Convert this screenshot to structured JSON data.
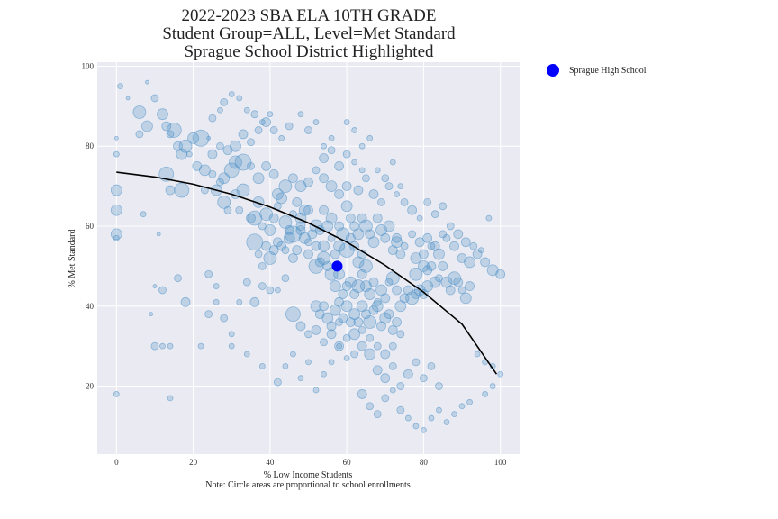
{
  "chart_data": {
    "type": "scatter",
    "title_lines": [
      "2022-2023 SBA ELA 10TH GRADE",
      "Student Group=ALL, Level=Met Standard",
      "Sprague School District Highlighted"
    ],
    "xlabel": "% Low Income Students",
    "ylabel": "% Met Standard",
    "note": "Note: Circle areas are proportional to school enrollments",
    "xlim": [
      -5,
      105
    ],
    "ylim": [
      3,
      101
    ],
    "xticks": [
      0,
      20,
      40,
      60,
      80,
      100
    ],
    "yticks": [
      20,
      40,
      60,
      80,
      100
    ],
    "grid": true,
    "legend_placement": "outside-top-right",
    "colors": {
      "points": "#4a8fc7",
      "highlight": "#0000ff",
      "fit": "#000000",
      "plot_bg": "#eaeaf2",
      "grid": "#ffffff"
    },
    "fit_line": {
      "x": [
        0,
        10,
        20,
        30,
        40,
        50,
        60,
        70,
        80,
        90,
        99
      ],
      "y": [
        73.5,
        72.3,
        70.5,
        68,
        64.8,
        60.8,
        56,
        50.2,
        43.5,
        35.5,
        23
      ]
    },
    "highlight": {
      "name": "Sprague High School",
      "x": 57.5,
      "y": 50
    },
    "points": [
      [
        1,
        95,
        3
      ],
      [
        3,
        92,
        2
      ],
      [
        6,
        88.5,
        7
      ],
      [
        8,
        96,
        2
      ],
      [
        10,
        92,
        4
      ],
      [
        12,
        88,
        6
      ],
      [
        13,
        85,
        5
      ],
      [
        14,
        83,
        4
      ],
      [
        15,
        84,
        8
      ],
      [
        6,
        83,
        4
      ],
      [
        8,
        85,
        6
      ],
      [
        16,
        80,
        5
      ],
      [
        18,
        80,
        7
      ],
      [
        20,
        82,
        6
      ],
      [
        22,
        82,
        9
      ],
      [
        24,
        82,
        2
      ],
      [
        17,
        78,
        6
      ],
      [
        19,
        78,
        3
      ],
      [
        21,
        75,
        5
      ],
      [
        23,
        74,
        6
      ],
      [
        25,
        73,
        4
      ],
      [
        27,
        71,
        4
      ],
      [
        28,
        72,
        6
      ],
      [
        30,
        74,
        8
      ],
      [
        31,
        76,
        7
      ],
      [
        33,
        76,
        9
      ],
      [
        35,
        75,
        4
      ],
      [
        37,
        72,
        6
      ],
      [
        39,
        75,
        5
      ],
      [
        41,
        73,
        5
      ],
      [
        13,
        73,
        8
      ],
      [
        14,
        69,
        5
      ],
      [
        17,
        69,
        8
      ],
      [
        23,
        69,
        4
      ],
      [
        26,
        69,
        6
      ],
      [
        28,
        66,
        7
      ],
      [
        29,
        64,
        4
      ],
      [
        31,
        68,
        5
      ],
      [
        32,
        64,
        4
      ],
      [
        33,
        69,
        7
      ],
      [
        35,
        62,
        5
      ],
      [
        36,
        62,
        8
      ],
      [
        37,
        66,
        6
      ],
      [
        38,
        60,
        4
      ],
      [
        39,
        63,
        7
      ],
      [
        40,
        59,
        6
      ],
      [
        41,
        62,
        5
      ],
      [
        42,
        65,
        4
      ],
      [
        43,
        67,
        6
      ],
      [
        44,
        61,
        7
      ],
      [
        45,
        59,
        5
      ],
      [
        46,
        63,
        4
      ],
      [
        47,
        66,
        5
      ],
      [
        48,
        60,
        5
      ],
      [
        49,
        64,
        6
      ],
      [
        50,
        56,
        4
      ],
      [
        36,
        56,
        9
      ],
      [
        37,
        53,
        4
      ],
      [
        38,
        50,
        4
      ],
      [
        39,
        55,
        5
      ],
      [
        40,
        52,
        7
      ],
      [
        41,
        54,
        5
      ],
      [
        42,
        56,
        5
      ],
      [
        43,
        55,
        5
      ],
      [
        44,
        54,
        4
      ],
      [
        45,
        57,
        6
      ],
      [
        46,
        52,
        5
      ],
      [
        47,
        54,
        5
      ],
      [
        48,
        59,
        5
      ],
      [
        49,
        57,
        6
      ],
      [
        50,
        53,
        5
      ],
      [
        51,
        58,
        5
      ],
      [
        52,
        55,
        5
      ],
      [
        53,
        59,
        5
      ],
      [
        54,
        55,
        6
      ],
      [
        55,
        60,
        6
      ],
      [
        56,
        57,
        4
      ],
      [
        57,
        53,
        5
      ],
      [
        58,
        55,
        6
      ],
      [
        59,
        58,
        7
      ],
      [
        60,
        54,
        8
      ],
      [
        61,
        57,
        5
      ],
      [
        62,
        55,
        5
      ],
      [
        63,
        51,
        6
      ],
      [
        64,
        53,
        5
      ],
      [
        65,
        50,
        7
      ],
      [
        52,
        50,
        8
      ],
      [
        53,
        51,
        5
      ],
      [
        54,
        52,
        7
      ],
      [
        55,
        50,
        5
      ],
      [
        56,
        48,
        7
      ],
      [
        57,
        45,
        6
      ],
      [
        58,
        48,
        6
      ],
      [
        59,
        43,
        5
      ],
      [
        60,
        45,
        5
      ],
      [
        61,
        46,
        6
      ],
      [
        62,
        43,
        5
      ],
      [
        63,
        45,
        7
      ],
      [
        64,
        48,
        5
      ],
      [
        65,
        45,
        6
      ],
      [
        66,
        43,
        6
      ],
      [
        67,
        46,
        5
      ],
      [
        68,
        41,
        4
      ],
      [
        69,
        44,
        6
      ],
      [
        70,
        42,
        5
      ],
      [
        71,
        46,
        4
      ],
      [
        72,
        47,
        7
      ],
      [
        73,
        44,
        5
      ],
      [
        74,
        40,
        6
      ],
      [
        75,
        42,
        5
      ],
      [
        76,
        44,
        5
      ],
      [
        77,
        42,
        7
      ],
      [
        78,
        43,
        5
      ],
      [
        79,
        44,
        6
      ],
      [
        80,
        43,
        5
      ],
      [
        81,
        45,
        6
      ],
      [
        78,
        48,
        7
      ],
      [
        80,
        50,
        6
      ],
      [
        81,
        49,
        5
      ],
      [
        82,
        50,
        5
      ],
      [
        83,
        46,
        6
      ],
      [
        84,
        47,
        4
      ],
      [
        85,
        50,
        5
      ],
      [
        86,
        46,
        6
      ],
      [
        87,
        44,
        5
      ],
      [
        88,
        47,
        7
      ],
      [
        89,
        46,
        5
      ],
      [
        90,
        44,
        4
      ],
      [
        91,
        42,
        6
      ],
      [
        92,
        45,
        5
      ],
      [
        78,
        52,
        6
      ],
      [
        80,
        53,
        5
      ],
      [
        82,
        55,
        4
      ],
      [
        84,
        53,
        6
      ],
      [
        86,
        57,
        4
      ],
      [
        88,
        55,
        5
      ],
      [
        90,
        52,
        5
      ],
      [
        92,
        51,
        6
      ],
      [
        94,
        53,
        5
      ],
      [
        96,
        51,
        5
      ],
      [
        98,
        49,
        6
      ],
      [
        100,
        48,
        5
      ],
      [
        60,
        65,
        6
      ],
      [
        61,
        62,
        5
      ],
      [
        62,
        60,
        5
      ],
      [
        63,
        58,
        6
      ],
      [
        64,
        62,
        5
      ],
      [
        65,
        60,
        7
      ],
      [
        66,
        58,
        5
      ],
      [
        67,
        56,
        6
      ],
      [
        68,
        62,
        5
      ],
      [
        69,
        59,
        6
      ],
      [
        70,
        57,
        5
      ],
      [
        71,
        60,
        6
      ],
      [
        72,
        54,
        5
      ],
      [
        73,
        56,
        6
      ],
      [
        74,
        53,
        5
      ],
      [
        62,
        38,
        6
      ],
      [
        63,
        36,
        5
      ],
      [
        64,
        40,
        6
      ],
      [
        65,
        38,
        5
      ],
      [
        66,
        36,
        7
      ],
      [
        67,
        39,
        5
      ],
      [
        68,
        40,
        6
      ],
      [
        69,
        35,
        5
      ],
      [
        70,
        37,
        6
      ],
      [
        71,
        38,
        5
      ],
      [
        72,
        34,
        5
      ],
      [
        73,
        36,
        5
      ],
      [
        74,
        33,
        4
      ],
      [
        52,
        40,
        6
      ],
      [
        53,
        38,
        5
      ],
      [
        54,
        40,
        5
      ],
      [
        55,
        37,
        6
      ],
      [
        56,
        35,
        5
      ],
      [
        57,
        39,
        6
      ],
      [
        58,
        41,
        5
      ],
      [
        59,
        37,
        5
      ],
      [
        60,
        40,
        6
      ],
      [
        61,
        36,
        5
      ],
      [
        46,
        58,
        9
      ],
      [
        48,
        62,
        6
      ],
      [
        50,
        64,
        5
      ],
      [
        52,
        60,
        7
      ],
      [
        54,
        64,
        5
      ],
      [
        56,
        62,
        6
      ],
      [
        58,
        60,
        5
      ],
      [
        42,
        68,
        6
      ],
      [
        44,
        70,
        7
      ],
      [
        46,
        72,
        5
      ],
      [
        48,
        70,
        6
      ],
      [
        50,
        71,
        5
      ],
      [
        52,
        74,
        4
      ],
      [
        54,
        72,
        5
      ],
      [
        56,
        70,
        6
      ],
      [
        58,
        68,
        5
      ],
      [
        60,
        70,
        5
      ],
      [
        25,
        78,
        5
      ],
      [
        27,
        80,
        4
      ],
      [
        29,
        79,
        5
      ],
      [
        31,
        80,
        6
      ],
      [
        33,
        83,
        5
      ],
      [
        35,
        81,
        4
      ],
      [
        37,
        84,
        4
      ],
      [
        39,
        86,
        5
      ],
      [
        41,
        84,
        4
      ],
      [
        43,
        82,
        3
      ],
      [
        45,
        85,
        4
      ],
      [
        28,
        91,
        4
      ],
      [
        30,
        93,
        3
      ],
      [
        32,
        92,
        3
      ],
      [
        34,
        89,
        3
      ],
      [
        36,
        88,
        4
      ],
      [
        38,
        86,
        3
      ],
      [
        40,
        88,
        3
      ],
      [
        25,
        87,
        4
      ],
      [
        27,
        89,
        3
      ],
      [
        0,
        82,
        2
      ],
      [
        0,
        78,
        3
      ],
      [
        0,
        69,
        6
      ],
      [
        0,
        64,
        6
      ],
      [
        0,
        58,
        6
      ],
      [
        0,
        57,
        3
      ],
      [
        7,
        63,
        3
      ],
      [
        11,
        58,
        2
      ],
      [
        10,
        45,
        2
      ],
      [
        9,
        38,
        2
      ],
      [
        16,
        47,
        4
      ],
      [
        18,
        41,
        5
      ],
      [
        24,
        48,
        4
      ],
      [
        26,
        45,
        3
      ],
      [
        28,
        37,
        4
      ],
      [
        30,
        33,
        3
      ],
      [
        32,
        41,
        3
      ],
      [
        34,
        46,
        4
      ],
      [
        36,
        41,
        5
      ],
      [
        38,
        45,
        4
      ],
      [
        40,
        44,
        4
      ],
      [
        42,
        44,
        3
      ],
      [
        44,
        47,
        4
      ],
      [
        12,
        44,
        4
      ],
      [
        14,
        30,
        3
      ],
      [
        10,
        30,
        4
      ],
      [
        12,
        30,
        3
      ],
      [
        0,
        18,
        3
      ],
      [
        14,
        17,
        3
      ],
      [
        22,
        30,
        3
      ],
      [
        24,
        38,
        4
      ],
      [
        26,
        41,
        3
      ],
      [
        30,
        30,
        3
      ],
      [
        34,
        28,
        3
      ],
      [
        38,
        25,
        3
      ],
      [
        42,
        21,
        4
      ],
      [
        44,
        25,
        3
      ],
      [
        46,
        28,
        3
      ],
      [
        48,
        22,
        3
      ],
      [
        50,
        26,
        3
      ],
      [
        52,
        19,
        3
      ],
      [
        54,
        23,
        3
      ],
      [
        56,
        26,
        3
      ],
      [
        58,
        30,
        3
      ],
      [
        60,
        27,
        3
      ],
      [
        62,
        33,
        6
      ],
      [
        64,
        30,
        5
      ],
      [
        66,
        28,
        6
      ],
      [
        68,
        24,
        5
      ],
      [
        70,
        22,
        5
      ],
      [
        72,
        25,
        4
      ],
      [
        74,
        20,
        4
      ],
      [
        76,
        23,
        5
      ],
      [
        78,
        26,
        4
      ],
      [
        80,
        22,
        4
      ],
      [
        82,
        25,
        4
      ],
      [
        84,
        20,
        4
      ],
      [
        64,
        18,
        5
      ],
      [
        66,
        15,
        4
      ],
      [
        68,
        13,
        4
      ],
      [
        70,
        17,
        4
      ],
      [
        72,
        19,
        3
      ],
      [
        74,
        14,
        4
      ],
      [
        76,
        12,
        3
      ],
      [
        78,
        10,
        3
      ],
      [
        80,
        9,
        3
      ],
      [
        82,
        12,
        3
      ],
      [
        84,
        14,
        3
      ],
      [
        86,
        11,
        3
      ],
      [
        88,
        13,
        3
      ],
      [
        90,
        15,
        3
      ],
      [
        92,
        16,
        3
      ],
      [
        94,
        28,
        3
      ],
      [
        96,
        26,
        3
      ],
      [
        98,
        25,
        3
      ],
      [
        100,
        23,
        3
      ],
      [
        96,
        18,
        3
      ],
      [
        98,
        20,
        3
      ],
      [
        73,
        57,
        5
      ],
      [
        75,
        55,
        4
      ],
      [
        77,
        58,
        4
      ],
      [
        79,
        56,
        5
      ],
      [
        81,
        57,
        5
      ],
      [
        83,
        55,
        5
      ],
      [
        85,
        58,
        4
      ],
      [
        87,
        60,
        4
      ],
      [
        89,
        58,
        5
      ],
      [
        91,
        56,
        5
      ],
      [
        93,
        55,
        4
      ],
      [
        95,
        54,
        3
      ],
      [
        97,
        62,
        3
      ],
      [
        63,
        69,
        5
      ],
      [
        65,
        72,
        4
      ],
      [
        67,
        68,
        5
      ],
      [
        69,
        66,
        4
      ],
      [
        71,
        70,
        4
      ],
      [
        73,
        68,
        3
      ],
      [
        75,
        66,
        4
      ],
      [
        77,
        64,
        5
      ],
      [
        79,
        62,
        3
      ],
      [
        81,
        66,
        4
      ],
      [
        83,
        63,
        4
      ],
      [
        85,
        65,
        4
      ],
      [
        54,
        77,
        5
      ],
      [
        56,
        79,
        4
      ],
      [
        58,
        75,
        5
      ],
      [
        60,
        78,
        4
      ],
      [
        62,
        76,
        3
      ],
      [
        64,
        80,
        3
      ],
      [
        66,
        82,
        3
      ],
      [
        68,
        74,
        3
      ],
      [
        70,
        72,
        4
      ],
      [
        72,
        76,
        3
      ],
      [
        74,
        70,
        3
      ],
      [
        48,
        88,
        3
      ],
      [
        50,
        84,
        4
      ],
      [
        52,
        86,
        3
      ],
      [
        54,
        80,
        3
      ],
      [
        56,
        82,
        3
      ],
      [
        60,
        86,
        3
      ],
      [
        62,
        84,
        3
      ],
      [
        64,
        74,
        3
      ],
      [
        58,
        30,
        5
      ],
      [
        60,
        32,
        4
      ],
      [
        62,
        28,
        4
      ],
      [
        64,
        34,
        4
      ],
      [
        66,
        32,
        4
      ],
      [
        68,
        30,
        4
      ],
      [
        70,
        28,
        5
      ],
      [
        72,
        30,
        4
      ],
      [
        46,
        38,
        8
      ],
      [
        48,
        35,
        5
      ],
      [
        50,
        33,
        4
      ],
      [
        52,
        34,
        5
      ],
      [
        54,
        31,
        4
      ],
      [
        56,
        33,
        5
      ],
      [
        58,
        36,
        4
      ]
    ]
  }
}
